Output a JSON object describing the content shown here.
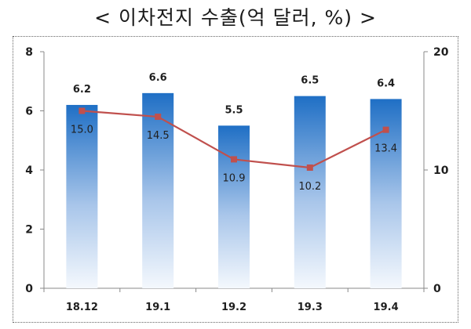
{
  "title": "< 이차전지 수출(억 달러, %) >",
  "chart_data": {
    "type": "bar",
    "categories": [
      "18.12",
      "19.1",
      "19.2",
      "19.3",
      "19.4"
    ],
    "series": [
      {
        "values": [
          6.2,
          6.6,
          5.5,
          6.5,
          6.4
        ],
        "type": "bar",
        "axis": "left",
        "color": "#1f6fc5"
      },
      {
        "values": [
          15.0,
          14.5,
          10.9,
          10.2,
          13.4
        ],
        "type": "line",
        "axis": "right",
        "color": "#c0504d"
      }
    ],
    "y_left": {
      "range": [
        0,
        8
      ],
      "ticks": [
        "0",
        "2",
        "4",
        "6",
        "8"
      ]
    },
    "y_right": {
      "range": [
        0,
        20
      ],
      "ticks": [
        "0",
        "10",
        "20"
      ]
    },
    "grid": false,
    "bar_value_labels": [
      "6.2",
      "6.6",
      "5.5",
      "6.5",
      "6.4"
    ],
    "line_value_labels": [
      "15.0",
      "14.5",
      "10.9",
      "10.2",
      "13.4"
    ]
  }
}
